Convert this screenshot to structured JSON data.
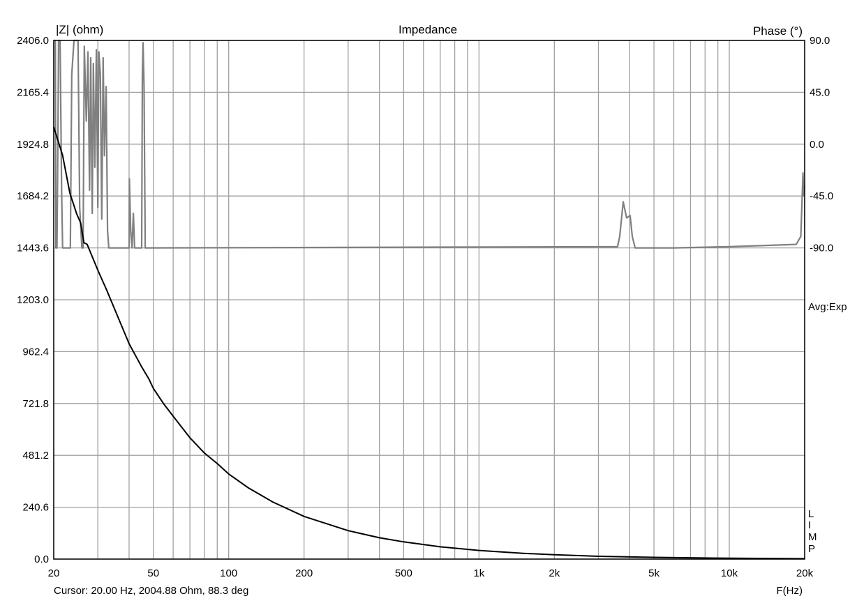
{
  "chart_data": {
    "type": "line",
    "title": "Impedance",
    "ylabel": "|Z| (ohm)",
    "y2label": "Phase (°)",
    "xlabel": "F(Hz)",
    "xscale": "log",
    "xlim": [
      20,
      20000
    ],
    "ylim": [
      0,
      2406
    ],
    "y2lim": [
      -360,
      90
    ],
    "grid": true,
    "x_ticks": [
      {
        "value": 20,
        "label": "20"
      },
      {
        "value": 50,
        "label": "50"
      },
      {
        "value": 100,
        "label": "100"
      },
      {
        "value": 200,
        "label": "200"
      },
      {
        "value": 500,
        "label": "500"
      },
      {
        "value": 1000,
        "label": "1k"
      },
      {
        "value": 2000,
        "label": "2k"
      },
      {
        "value": 5000,
        "label": "5k"
      },
      {
        "value": 10000,
        "label": "10k"
      },
      {
        "value": 20000,
        "label": "20k"
      }
    ],
    "x_grid": [
      20,
      30,
      40,
      50,
      60,
      70,
      80,
      90,
      100,
      200,
      300,
      400,
      500,
      600,
      700,
      800,
      900,
      1000,
      2000,
      3000,
      4000,
      5000,
      6000,
      7000,
      8000,
      9000,
      10000,
      20000
    ],
    "y_ticks": [
      "0.0",
      "240.6",
      "481.2",
      "721.8",
      "962.4",
      "1203.0",
      "1443.6",
      "1684.2",
      "1924.8",
      "2165.4",
      "2406.0"
    ],
    "y2_ticks": [
      "90.0",
      "45.0",
      "0.0",
      "-45.0",
      "-90.0"
    ],
    "series": [
      {
        "axis": "left",
        "color": "#000000",
        "points": [
          [
            20,
            2005
          ],
          [
            21.7,
            1873
          ],
          [
            23.2,
            1698
          ],
          [
            24.7,
            1601
          ],
          [
            25.6,
            1560
          ],
          [
            26.4,
            1468
          ],
          [
            27.2,
            1460
          ],
          [
            28.1,
            1420
          ],
          [
            30,
            1340
          ],
          [
            32.5,
            1250
          ],
          [
            35,
            1160
          ],
          [
            40,
            999
          ],
          [
            45,
            890
          ],
          [
            48,
            835
          ],
          [
            50,
            792
          ],
          [
            55,
            720
          ],
          [
            60,
            663
          ],
          [
            70,
            563
          ],
          [
            80,
            492
          ],
          [
            90,
            443
          ],
          [
            100,
            395
          ],
          [
            120,
            330
          ],
          [
            150,
            265
          ],
          [
            200,
            198
          ],
          [
            300,
            132
          ],
          [
            400,
            99
          ],
          [
            500,
            80
          ],
          [
            700,
            57
          ],
          [
            1000,
            40
          ],
          [
            1500,
            27
          ],
          [
            2000,
            20
          ],
          [
            3000,
            13
          ],
          [
            5000,
            8
          ],
          [
            10000,
            4
          ],
          [
            20000,
            2
          ]
        ]
      },
      {
        "axis": "right",
        "color": "#808080",
        "points": [
          [
            20,
            90
          ],
          [
            20.3,
            90
          ],
          [
            20.4,
            -90
          ],
          [
            20.6,
            -90
          ],
          [
            20.8,
            10
          ],
          [
            20.9,
            90
          ],
          [
            21.2,
            90
          ],
          [
            21.5,
            -40
          ],
          [
            21.7,
            -90
          ],
          [
            23.3,
            -90
          ],
          [
            23.6,
            60
          ],
          [
            24.1,
            90
          ],
          [
            25.0,
            90
          ],
          [
            25.4,
            -55
          ],
          [
            25.9,
            -90
          ],
          [
            26.2,
            -90
          ],
          [
            26.5,
            85
          ],
          [
            27.0,
            20
          ],
          [
            27.4,
            80
          ],
          [
            27.8,
            -40
          ],
          [
            28.1,
            75
          ],
          [
            28.5,
            -60
          ],
          [
            28.8,
            70
          ],
          [
            29.2,
            -20
          ],
          [
            29.6,
            82
          ],
          [
            30.0,
            -55
          ],
          [
            30.3,
            80
          ],
          [
            30.7,
            60
          ],
          [
            31.1,
            -65
          ],
          [
            31.5,
            75
          ],
          [
            31.9,
            -10
          ],
          [
            32.4,
            50
          ],
          [
            32.8,
            -75
          ],
          [
            33.2,
            -90
          ],
          [
            40.0,
            -90
          ],
          [
            40.1,
            -30
          ],
          [
            40.6,
            -75
          ],
          [
            41.1,
            -90
          ],
          [
            41.6,
            -60
          ],
          [
            42.1,
            -90
          ],
          [
            44.9,
            -90
          ],
          [
            45.2,
            60
          ],
          [
            45.5,
            88
          ],
          [
            45.9,
            50
          ],
          [
            46.4,
            -90
          ],
          [
            3578,
            -89
          ],
          [
            3650,
            -80
          ],
          [
            3767,
            -50
          ],
          [
            3889,
            -64
          ],
          [
            4016,
            -62
          ],
          [
            4095,
            -80
          ],
          [
            4205,
            -90
          ],
          [
            6000,
            -90
          ],
          [
            10000,
            -89
          ],
          [
            18500,
            -87
          ],
          [
            19300,
            -80
          ],
          [
            19700,
            -25
          ],
          [
            19850,
            -45
          ],
          [
            20000,
            -36
          ]
        ]
      }
    ]
  },
  "annotations": {
    "avg": "Avg:Exp",
    "brand_letters": [
      "L",
      "I",
      "M",
      "P"
    ],
    "cursor": "Cursor: 20.00 Hz, 2004.88 Ohm, 88.3 deg"
  }
}
